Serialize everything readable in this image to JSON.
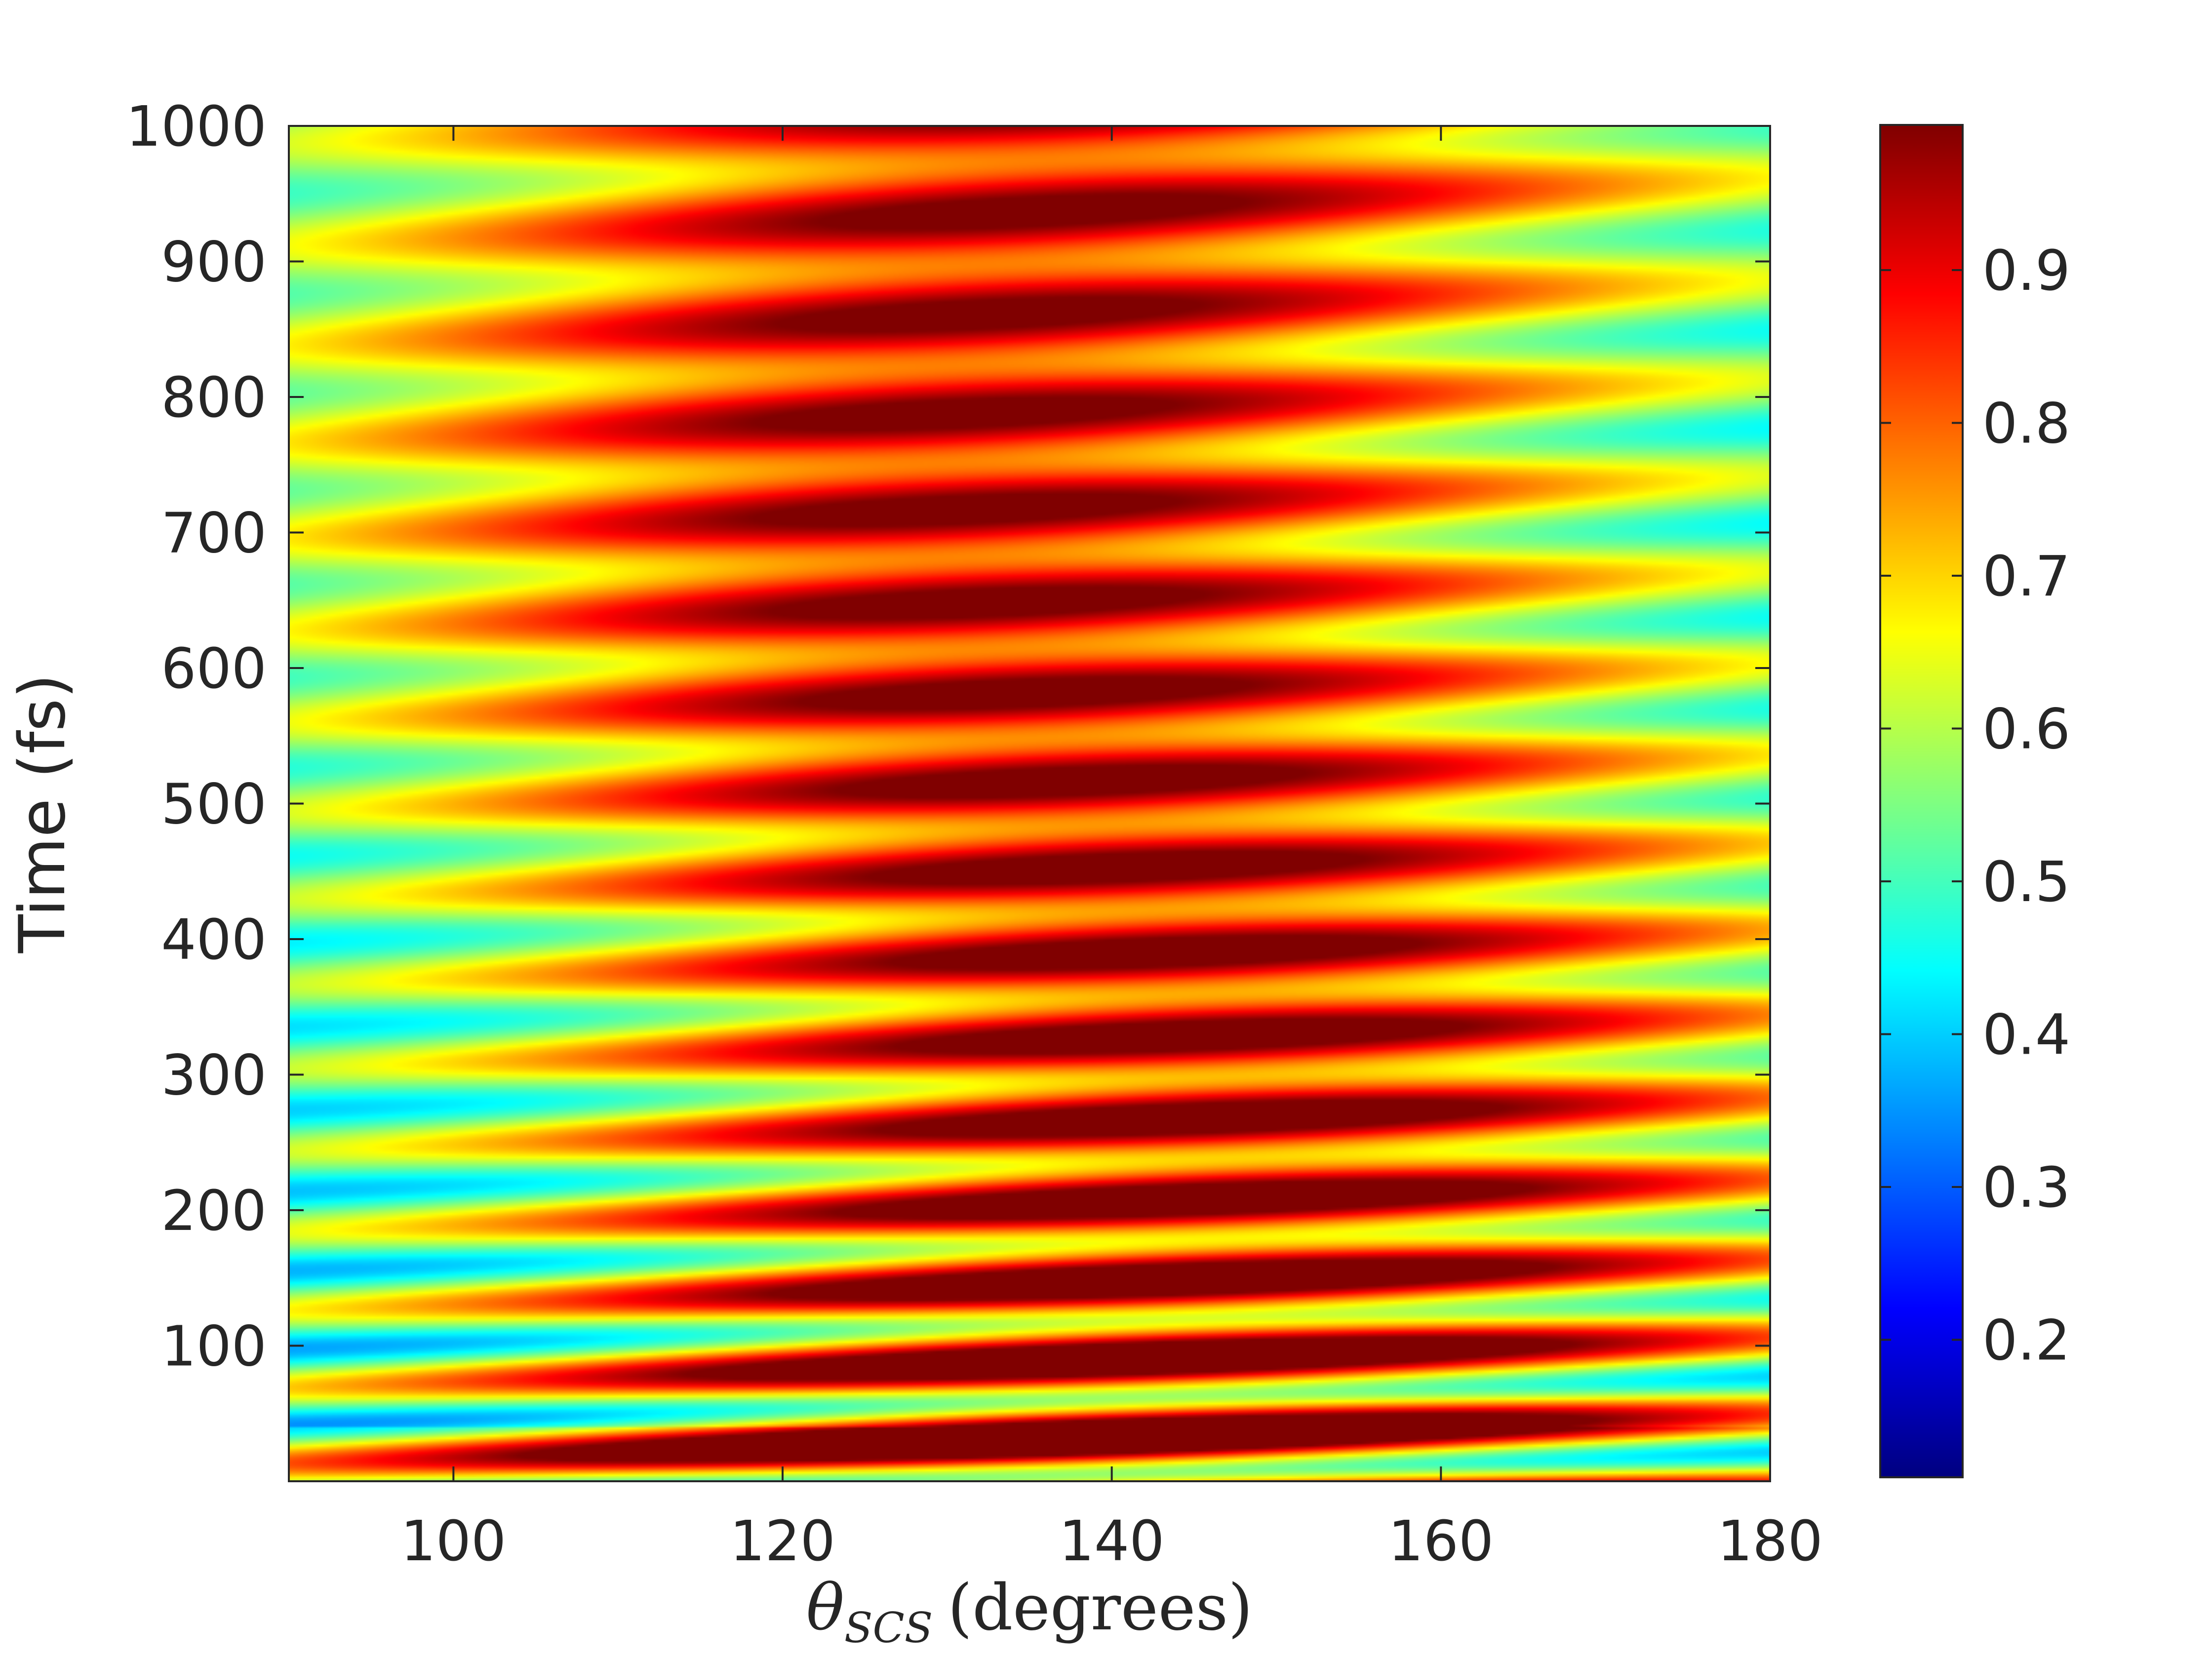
{
  "chart_data": {
    "type": "heatmap",
    "title": "",
    "xlabel": {
      "symbol": "θ",
      "subscript": "SCS",
      "unit": "(degrees)"
    },
    "ylabel": "Time (fs)",
    "xlim": [
      90,
      180
    ],
    "ylim": [
      0,
      1000
    ],
    "xticks": [
      100,
      120,
      140,
      160,
      180
    ],
    "yticks": [
      100,
      200,
      300,
      400,
      500,
      600,
      700,
      800,
      900,
      1000
    ],
    "colorbar": {
      "colormap": "jet",
      "clim": [
        0.11,
        0.995
      ],
      "ticks": [
        0.2,
        0.3,
        0.4,
        0.5,
        0.6,
        0.7,
        0.8,
        0.9
      ]
    },
    "grid": false,
    "field_description_values": {
      "low_angle_edge_value": 0.5,
      "central_peak_value": 0.9,
      "peak_angle_deg": 138,
      "oscillation_period_fs": 55
    }
  }
}
